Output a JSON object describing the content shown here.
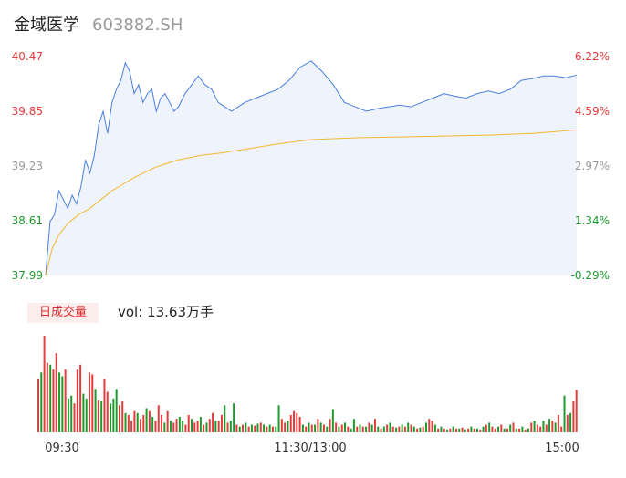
{
  "header": {
    "name": "金域医学",
    "code": "603882.SH"
  },
  "volume_panel": {
    "tab_label": "日成交量",
    "vol_prefix": "vol: ",
    "vol_value": "13.63万手"
  },
  "colors": {
    "price": "#4a7fe0",
    "avg": "#f5b82e",
    "up": "#e63a3a",
    "down": "#1a9a2a",
    "neutral": "#999999",
    "area": "#eef3fc"
  },
  "chart_data": [
    {
      "type": "line",
      "title": "",
      "ylim": [
        37.99,
        40.47
      ],
      "y_ticks_left": [
        "40.47",
        "39.85",
        "39.23",
        "38.61",
        "37.99"
      ],
      "y_ticks_right": [
        "6.22%",
        "4.59%",
        "2.97%",
        "1.34%",
        "-0.29%"
      ],
      "x_ticks": [
        "09:30",
        "11:30/13:00",
        "15:00"
      ],
      "series": [
        {
          "role": "price",
          "t": [
            0,
            2,
            4,
            6,
            8,
            10,
            12,
            14,
            16,
            18,
            20,
            22,
            24,
            26,
            28,
            30,
            32,
            34,
            36,
            38,
            40,
            42,
            44,
            46,
            48,
            50,
            52,
            54,
            56,
            58,
            60,
            63,
            66,
            69,
            72,
            75,
            78,
            81,
            84,
            87,
            90,
            95,
            100,
            105,
            110,
            115,
            120,
            125,
            130,
            135,
            140,
            145,
            150,
            155,
            160,
            165,
            170,
            175,
            180,
            185,
            190,
            195,
            200,
            205,
            210,
            215,
            220,
            225,
            230,
            235,
            240
          ],
          "values": [
            37.99,
            38.6,
            38.68,
            38.95,
            38.85,
            38.75,
            38.9,
            38.8,
            39.0,
            39.3,
            39.15,
            39.35,
            39.7,
            39.85,
            39.6,
            39.95,
            40.1,
            40.2,
            40.4,
            40.3,
            40.05,
            40.15,
            39.95,
            40.05,
            40.1,
            39.85,
            40.0,
            40.05,
            39.95,
            39.85,
            39.9,
            40.05,
            40.15,
            40.25,
            40.15,
            40.1,
            39.95,
            39.9,
            39.85,
            39.9,
            39.95,
            40.0,
            40.05,
            40.1,
            40.2,
            40.35,
            40.42,
            40.3,
            40.15,
            39.95,
            39.9,
            39.85,
            39.88,
            39.9,
            39.92,
            39.9,
            39.95,
            40.0,
            40.05,
            40.02,
            40.0,
            40.05,
            40.08,
            40.05,
            40.1,
            40.2,
            40.22,
            40.25,
            40.25,
            40.23,
            40.26
          ]
        },
        {
          "role": "avg",
          "t": [
            0,
            3,
            6,
            10,
            15,
            20,
            30,
            40,
            50,
            60,
            70,
            80,
            90,
            105,
            120,
            140,
            160,
            180,
            200,
            220,
            240
          ],
          "values": [
            37.99,
            38.3,
            38.45,
            38.58,
            38.68,
            38.75,
            38.95,
            39.1,
            39.22,
            39.3,
            39.35,
            39.38,
            39.42,
            39.48,
            39.53,
            39.55,
            39.56,
            39.57,
            39.58,
            39.6,
            39.64
          ]
        }
      ]
    },
    {
      "type": "bar",
      "title": "",
      "series": [
        {
          "name": "",
          "values": [
            55,
            62,
            100,
            72,
            70,
            65,
            82,
            62,
            58,
            65,
            35,
            38,
            30,
            65,
            70,
            40,
            35,
            62,
            60,
            45,
            33,
            32,
            55,
            42,
            30,
            35,
            45,
            28,
            32,
            20,
            18,
            12,
            22,
            20,
            14,
            18,
            25,
            22,
            16,
            12,
            28,
            18,
            10,
            22,
            12,
            10,
            14,
            16,
            12,
            8,
            18,
            14,
            10,
            12,
            16,
            8,
            10,
            14,
            20,
            12,
            12,
            18,
            28,
            10,
            12,
            30,
            8,
            6,
            8,
            10,
            6,
            8,
            7,
            9,
            10,
            8,
            6,
            8,
            6,
            6,
            28,
            14,
            10,
            12,
            18,
            22,
            20,
            16,
            8,
            6,
            10,
            8,
            8,
            14,
            10,
            8,
            6,
            14,
            24,
            10,
            6,
            8,
            10,
            6,
            4,
            14,
            6,
            8,
            6,
            6,
            10,
            8,
            14,
            6,
            4,
            6,
            8,
            10,
            6,
            5,
            6,
            8,
            6,
            10,
            8,
            6,
            4,
            5,
            6,
            10,
            14,
            12,
            8,
            4,
            6,
            4,
            3,
            4,
            6,
            4,
            4,
            5,
            3,
            4,
            6,
            4,
            4,
            3,
            6,
            8,
            10,
            6,
            4,
            6,
            8,
            4,
            4,
            8,
            10,
            4,
            4,
            6,
            3,
            4,
            10,
            12,
            8,
            6,
            12,
            8,
            14,
            12,
            10,
            18,
            6,
            38,
            18,
            20,
            32,
            44
          ],
          "up": [
            1,
            0,
            1,
            1,
            0,
            1,
            1,
            0,
            0,
            1,
            0,
            0,
            1,
            1,
            1,
            0,
            0,
            1,
            1,
            0,
            1,
            0,
            1,
            1,
            0,
            0,
            0,
            1,
            1,
            0,
            1,
            1,
            1,
            0,
            1,
            1,
            0,
            1,
            0,
            1,
            1,
            1,
            0,
            1,
            0,
            1,
            1,
            0,
            0,
            1,
            1,
            0,
            1,
            1,
            0,
            1,
            0,
            1,
            1,
            0,
            1,
            1,
            0,
            1,
            0,
            0,
            1,
            0,
            1,
            0,
            1,
            0,
            1,
            0,
            1,
            0,
            1,
            0,
            1,
            0,
            0,
            1,
            1,
            0,
            1,
            1,
            1,
            1,
            0,
            1,
            0,
            1,
            0,
            1,
            0,
            1,
            0,
            1,
            0,
            1,
            0,
            1,
            0,
            1,
            0,
            0,
            1,
            0,
            1,
            0,
            1,
            0,
            1,
            0,
            1,
            0,
            1,
            0,
            1,
            0,
            1,
            0,
            1,
            0,
            1,
            0,
            1,
            0,
            1,
            0,
            1,
            1,
            0,
            1,
            0,
            1,
            0,
            1,
            0,
            1,
            0,
            1,
            0,
            1,
            0,
            1,
            0,
            1,
            0,
            1,
            0,
            1,
            1,
            0,
            1,
            0,
            1,
            0,
            1,
            0,
            1,
            0,
            1,
            0,
            1,
            0,
            1,
            1,
            0,
            1,
            0,
            1,
            0,
            1,
            1,
            0,
            1,
            0,
            1,
            1
          ]
        }
      ]
    }
  ]
}
